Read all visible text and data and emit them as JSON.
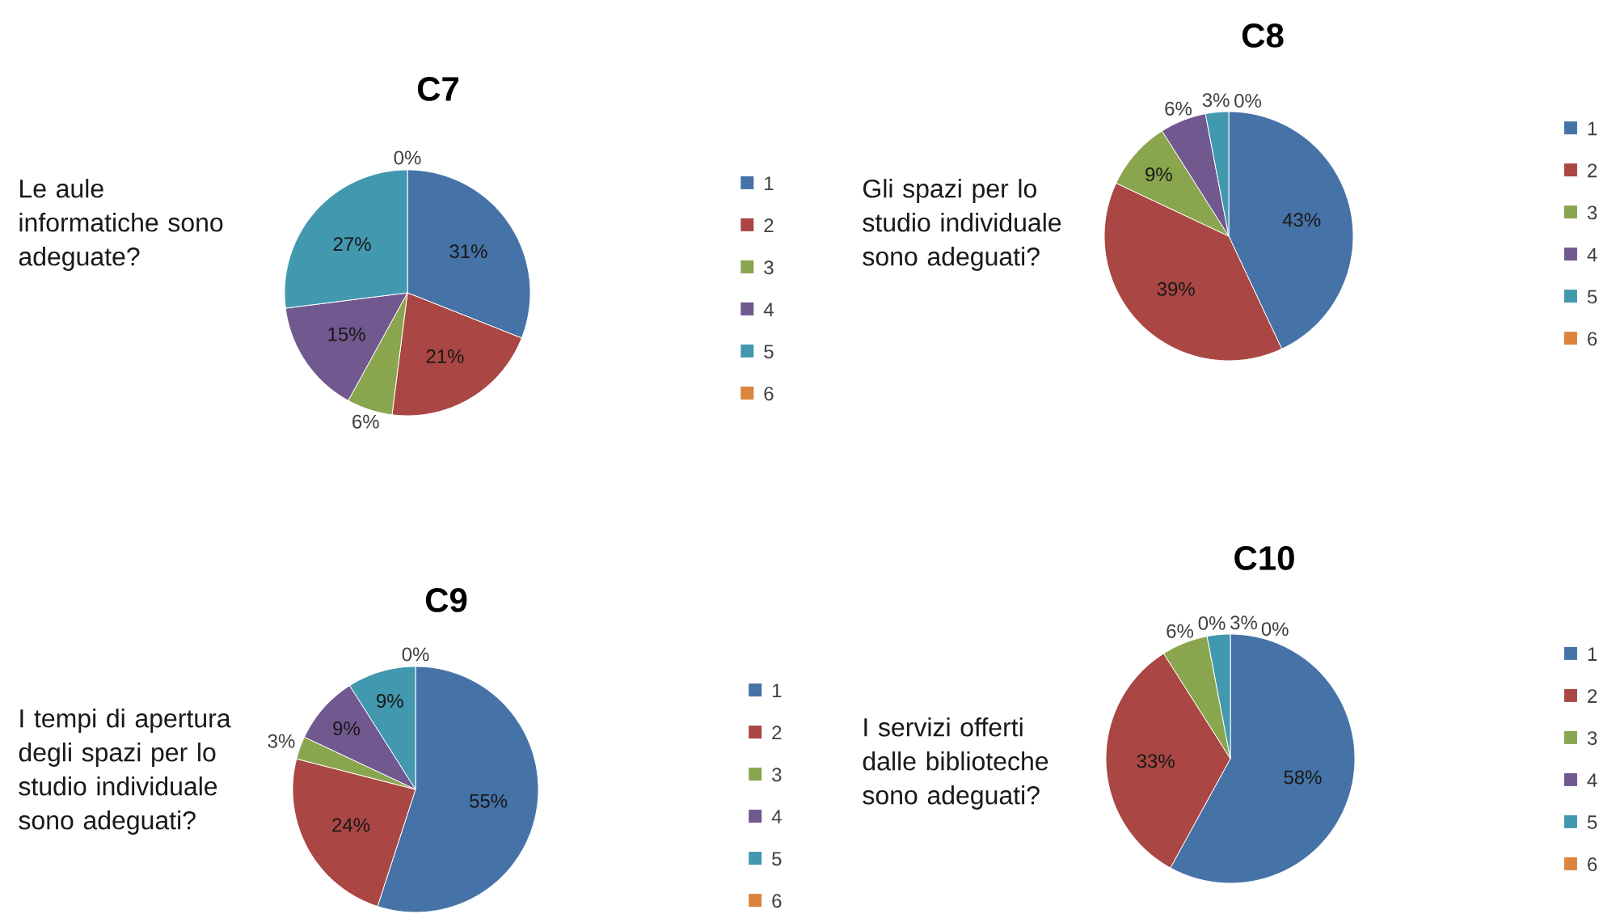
{
  "chart_data": [
    {
      "type": "pie",
      "title": "C7",
      "annotations": [
        "Le aule informatiche sono adeguate?"
      ],
      "categories": [
        "1",
        "2",
        "3",
        "4",
        "5",
        "6"
      ],
      "values": [
        31,
        21,
        6,
        15,
        27,
        0
      ],
      "colors": [
        "#4572a7",
        "#aa4643",
        "#89a54e",
        "#71588f",
        "#4198af",
        "#db843d"
      ],
      "value_labels": [
        "31%",
        "21%",
        "6%",
        "15%",
        "27%",
        "0%"
      ],
      "legend": "right"
    },
    {
      "type": "pie",
      "title": "C8",
      "annotations": [
        "Gli spazi per lo studio individuale sono adeguati?"
      ],
      "categories": [
        "1",
        "2",
        "3",
        "4",
        "5",
        "6"
      ],
      "values": [
        43,
        39,
        9,
        6,
        3,
        0
      ],
      "colors": [
        "#4572a7",
        "#aa4643",
        "#89a54e",
        "#71588f",
        "#4198af",
        "#db843d"
      ],
      "value_labels": [
        "43%",
        "39%",
        "9%",
        "6%",
        "3%",
        "0%"
      ],
      "legend": "right"
    },
    {
      "type": "pie",
      "title": "C9",
      "annotations": [
        "I tempi di apertura degli spazi per lo studio individuale sono adeguati?"
      ],
      "categories": [
        "1",
        "2",
        "3",
        "4",
        "5",
        "6"
      ],
      "values": [
        55,
        24,
        3,
        9,
        9,
        0
      ],
      "colors": [
        "#4572a7",
        "#aa4643",
        "#89a54e",
        "#71588f",
        "#4198af",
        "#db843d"
      ],
      "value_labels": [
        "55%",
        "24%",
        "3%",
        "9%",
        "9%",
        "0%"
      ],
      "legend": "right"
    },
    {
      "type": "pie",
      "title": "C10",
      "annotations": [
        "I servizi offerti dalle biblioteche sono adeguati?"
      ],
      "categories": [
        "1",
        "2",
        "3",
        "4",
        "5",
        "6"
      ],
      "values": [
        58,
        33,
        6,
        0,
        3,
        0
      ],
      "colors": [
        "#4572a7",
        "#aa4643",
        "#89a54e",
        "#71588f",
        "#4198af",
        "#db843d"
      ],
      "value_labels": [
        "58%",
        "33%",
        "6%",
        "0%",
        "3%",
        "0%"
      ],
      "legend": "right"
    }
  ]
}
